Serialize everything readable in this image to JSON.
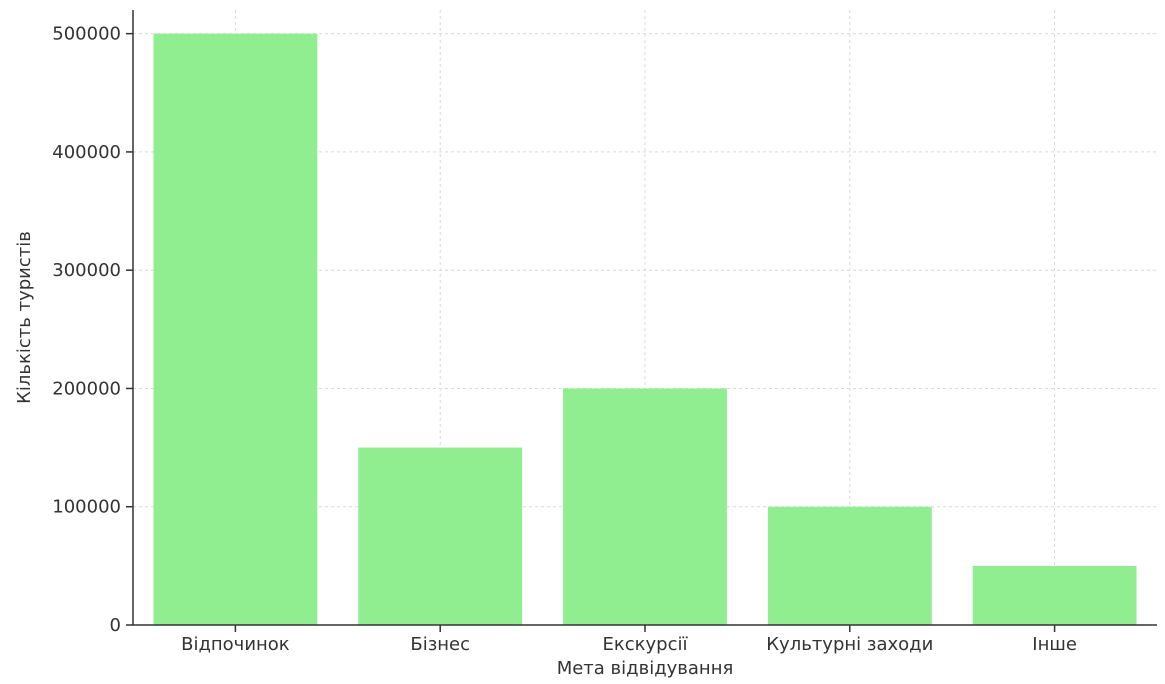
{
  "chart_data": {
    "type": "bar",
    "title": "",
    "xlabel": "Мета відвідування",
    "ylabel": "Кількість туристів",
    "categories": [
      "Відпочинок",
      "Бізнес",
      "Екскурсії",
      "Культурні заходи",
      "Інше"
    ],
    "values": [
      500000,
      150000,
      200000,
      100000,
      50000
    ],
    "ylim": [
      0,
      520000
    ],
    "yticks": [
      0,
      100000,
      200000,
      300000,
      400000,
      500000
    ],
    "grid": true,
    "legend": "none",
    "bar_color": "#90ee90",
    "axis_color": "#333333",
    "grid_color": "#d9d9d9"
  }
}
